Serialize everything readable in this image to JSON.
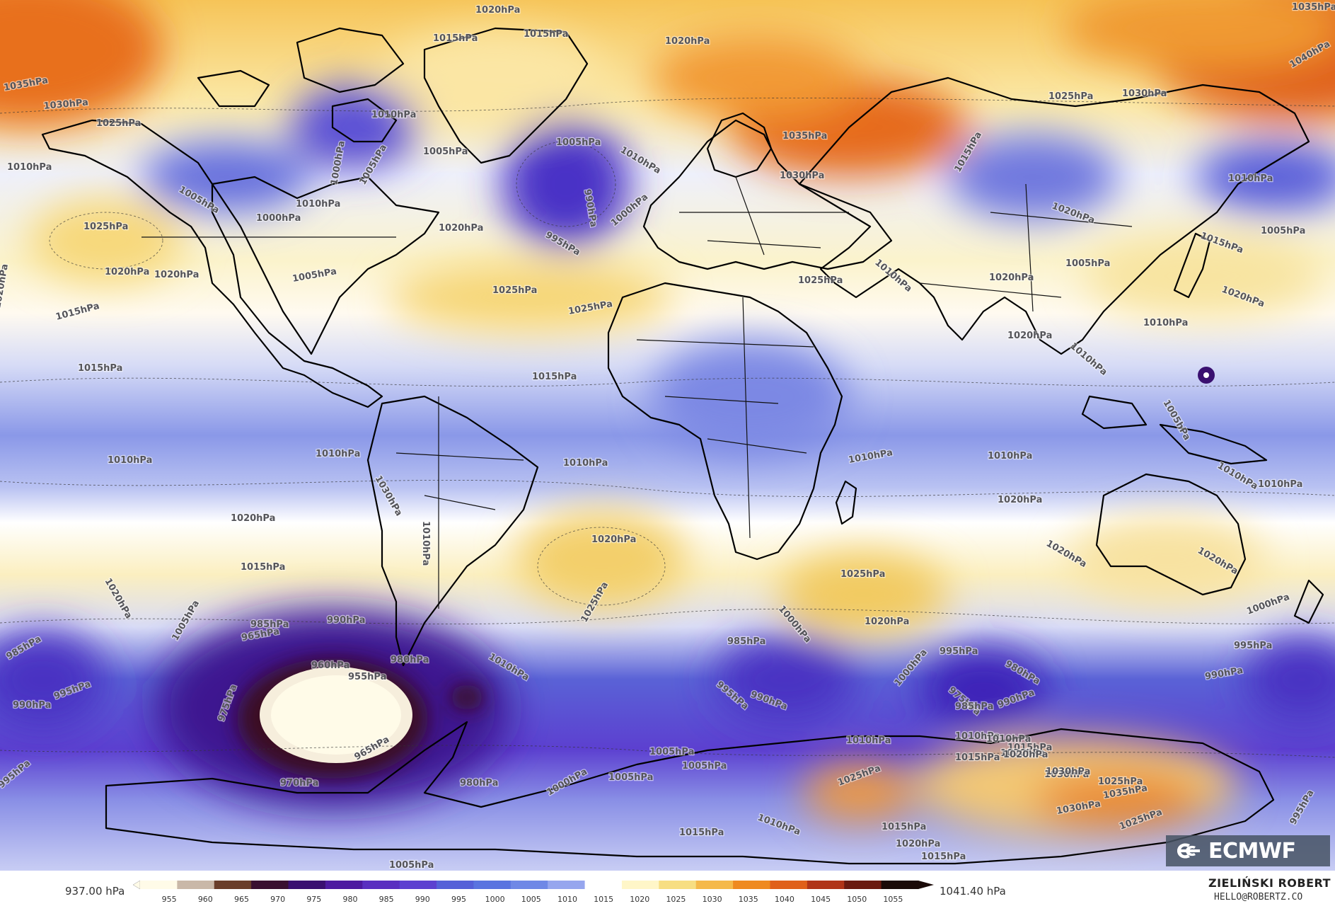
{
  "map": {
    "isobar_labels": [
      {
        "text": "1020hPa",
        "ref": "a1"
      },
      {
        "text": "1015hPa",
        "ref": "a2"
      },
      {
        "text": "1015hPa",
        "ref": "a3"
      },
      {
        "text": "1020hPa",
        "ref": "a4"
      },
      {
        "text": "1035hPa",
        "ref": "a5"
      },
      {
        "text": "1030hPa",
        "ref": "a6"
      },
      {
        "text": "1025hPa",
        "ref": "a7"
      },
      {
        "text": "1010hPa",
        "ref": "a8"
      },
      {
        "text": "1010hPa",
        "ref": "a9"
      },
      {
        "text": "1005hPa",
        "ref": "a10"
      },
      {
        "text": "1000hPa",
        "ref": "a11"
      },
      {
        "text": "1005hPa",
        "ref": "a12"
      },
      {
        "text": "1010hPa",
        "ref": "a13"
      },
      {
        "text": "1000hPa",
        "ref": "a14"
      },
      {
        "text": "1020hPa",
        "ref": "a15"
      },
      {
        "text": "1005hPa",
        "ref": "a16"
      },
      {
        "text": "1005hPa",
        "ref": "a17"
      },
      {
        "text": "1010hPa",
        "ref": "a18"
      },
      {
        "text": "990hPa",
        "ref": "a19"
      },
      {
        "text": "995hPa",
        "ref": "a20"
      },
      {
        "text": "1000hPa",
        "ref": "a21"
      },
      {
        "text": "1035hPa",
        "ref": "a22"
      },
      {
        "text": "1030hPa",
        "ref": "a23"
      },
      {
        "text": "1015hPa",
        "ref": "a24"
      },
      {
        "text": "1025hPa",
        "ref": "a25"
      },
      {
        "text": "1030hPa",
        "ref": "a26"
      },
      {
        "text": "1040hPa",
        "ref": "a27"
      },
      {
        "text": "1035hPa",
        "ref": "a28"
      },
      {
        "text": "1010hPa",
        "ref": "a29"
      },
      {
        "text": "1005hPa",
        "ref": "a30"
      },
      {
        "text": "1015hPa",
        "ref": "a31"
      },
      {
        "text": "1020hPa",
        "ref": "a32"
      },
      {
        "text": "1020hPa",
        "ref": "a33"
      },
      {
        "text": "1025hPa",
        "ref": "a34"
      },
      {
        "text": "1020hPa",
        "ref": "a35"
      },
      {
        "text": "1020hPa",
        "ref": "a36"
      },
      {
        "text": "1015hPa",
        "ref": "a37"
      },
      {
        "text": "1020hPa",
        "ref": "a38"
      },
      {
        "text": "1015hPa",
        "ref": "a39"
      },
      {
        "text": "1005hPa",
        "ref": "a40"
      },
      {
        "text": "1025hPa",
        "ref": "a41"
      },
      {
        "text": "1025hPa",
        "ref": "a42"
      },
      {
        "text": "1015hPa",
        "ref": "a43"
      },
      {
        "text": "1025hPa",
        "ref": "a44"
      },
      {
        "text": "1010hPa",
        "ref": "a45"
      },
      {
        "text": "1020hPa",
        "ref": "a46"
      },
      {
        "text": "1005hPa",
        "ref": "a47"
      },
      {
        "text": "1010hPa",
        "ref": "a48"
      },
      {
        "text": "1010hPa",
        "ref": "a49"
      },
      {
        "text": "1020hPa",
        "ref": "a50"
      },
      {
        "text": "1005hPa",
        "ref": "a51"
      },
      {
        "text": "1010hPa",
        "ref": "a52"
      },
      {
        "text": "1010hPa",
        "ref": "a53"
      },
      {
        "text": "1010hPa",
        "ref": "a54"
      },
      {
        "text": "1010hPa",
        "ref": "a55"
      },
      {
        "text": "1010hPa",
        "ref": "a56"
      },
      {
        "text": "1030hPa",
        "ref": "a57"
      },
      {
        "text": "1010hPa",
        "ref": "a58"
      },
      {
        "text": "1010hPa",
        "ref": "a59"
      },
      {
        "text": "1010hPa",
        "ref": "a60"
      },
      {
        "text": "1020hPa",
        "ref": "a61"
      },
      {
        "text": "1020hPa",
        "ref": "a62"
      },
      {
        "text": "1020hPa",
        "ref": "a63"
      },
      {
        "text": "1020hPa",
        "ref": "a64"
      },
      {
        "text": "1020hPa",
        "ref": "a65"
      },
      {
        "text": "1015hPa",
        "ref": "a66"
      },
      {
        "text": "1025hPa",
        "ref": "a67"
      },
      {
        "text": "1025hPa",
        "ref": "a68"
      },
      {
        "text": "1020hPa",
        "ref": "a69"
      },
      {
        "text": "1000hPa",
        "ref": "a70"
      },
      {
        "text": "1005hPa",
        "ref": "a71"
      },
      {
        "text": "1010hPa",
        "ref": "a72"
      },
      {
        "text": "985hPa",
        "ref": "a73"
      },
      {
        "text": "990hPa",
        "ref": "a74"
      },
      {
        "text": "965hPa",
        "ref": "a75"
      },
      {
        "text": "960hPa",
        "ref": "a76"
      },
      {
        "text": "955hPa",
        "ref": "a77"
      },
      {
        "text": "980hPa",
        "ref": "a78"
      },
      {
        "text": "975hPa",
        "ref": "a79"
      },
      {
        "text": "965hPa",
        "ref": "a80"
      },
      {
        "text": "970hPa",
        "ref": "a81"
      },
      {
        "text": "980hPa",
        "ref": "a82"
      },
      {
        "text": "985hPa",
        "ref": "a83"
      },
      {
        "text": "995hPa",
        "ref": "a84"
      },
      {
        "text": "990hPa",
        "ref": "a85"
      },
      {
        "text": "1000hPa",
        "ref": "a86"
      },
      {
        "text": "995hPa",
        "ref": "a87"
      },
      {
        "text": "980hPa",
        "ref": "a88"
      },
      {
        "text": "975hPa",
        "ref": "a89"
      },
      {
        "text": "985hPa",
        "ref": "a90"
      },
      {
        "text": "990hPa",
        "ref": "a91"
      },
      {
        "text": "1000hPa",
        "ref": "a92"
      },
      {
        "text": "995hPa",
        "ref": "a93"
      },
      {
        "text": "990hPa",
        "ref": "a94"
      },
      {
        "text": "985hPa",
        "ref": "a95"
      },
      {
        "text": "990hPa",
        "ref": "a96"
      },
      {
        "text": "995hPa",
        "ref": "a97"
      },
      {
        "text": "995hPa",
        "ref": "a98"
      },
      {
        "text": "1010hPa",
        "ref": "a99"
      },
      {
        "text": "1015hPa",
        "ref": "a100"
      },
      {
        "text": "1020hPa",
        "ref": "a101"
      },
      {
        "text": "1030hPa",
        "ref": "a102"
      },
      {
        "text": "1035hPa",
        "ref": "a103"
      },
      {
        "text": "1030hPa",
        "ref": "a104"
      },
      {
        "text": "1025hPa",
        "ref": "a105"
      },
      {
        "text": "1025hPa",
        "ref": "a106"
      },
      {
        "text": "1005hPa",
        "ref": "a107"
      },
      {
        "text": "1005hPa",
        "ref": "a108"
      },
      {
        "text": "1005hPa",
        "ref": "a109"
      },
      {
        "text": "1000hPa",
        "ref": "a110"
      },
      {
        "text": "1010hPa",
        "ref": "a111"
      },
      {
        "text": "1015hPa",
        "ref": "a112"
      },
      {
        "text": "1015hPa",
        "ref": "a113"
      },
      {
        "text": "1005hPa",
        "ref": "a114"
      },
      {
        "text": "1020hPa",
        "ref": "a115"
      },
      {
        "text": "1015hPa",
        "ref": "a116"
      },
      {
        "text": "995hPa",
        "ref": "a117"
      },
      {
        "text": "1010hPa",
        "ref": "a118"
      },
      {
        "text": "1010hPa",
        "ref": "a119"
      },
      {
        "text": "1030hPa",
        "ref": "a120"
      },
      {
        "text": "1025hPa",
        "ref": "a121"
      },
      {
        "text": "1020hPa",
        "ref": "a122"
      },
      {
        "text": "1015hPa",
        "ref": "a123"
      },
      {
        "text": "1020hPa",
        "ref": "a124"
      }
    ]
  },
  "logo": {
    "text": "ECMWF"
  },
  "colorbar": {
    "min_label": "937.00 hPa",
    "max_label": "1041.40 hPa",
    "ticks": [
      "955",
      "960",
      "965",
      "970",
      "975",
      "980",
      "985",
      "990",
      "995",
      "1000",
      "1005",
      "1010",
      "1015",
      "1020",
      "1025",
      "1030",
      "1035",
      "1040",
      "1045",
      "1050",
      "1055"
    ],
    "colors": [
      "#fffbe8",
      "#c9b8a8",
      "#6a3e2a",
      "#3a1030",
      "#3a0f70",
      "#4d1aa0",
      "#5a2fc0",
      "#5c40d0",
      "#5560d8",
      "#5a74e0",
      "#6f88e6",
      "#96a6ee",
      "#ffffff",
      "#fff6c8",
      "#f7de82",
      "#f5b94a",
      "#ef8a20",
      "#e0601a",
      "#b03418",
      "#6a1a10",
      "#1a0a08"
    ]
  },
  "author": {
    "name": "ZIELIŃSKI ROBERT",
    "email": "HELLO@ROBERTZ.CO"
  }
}
